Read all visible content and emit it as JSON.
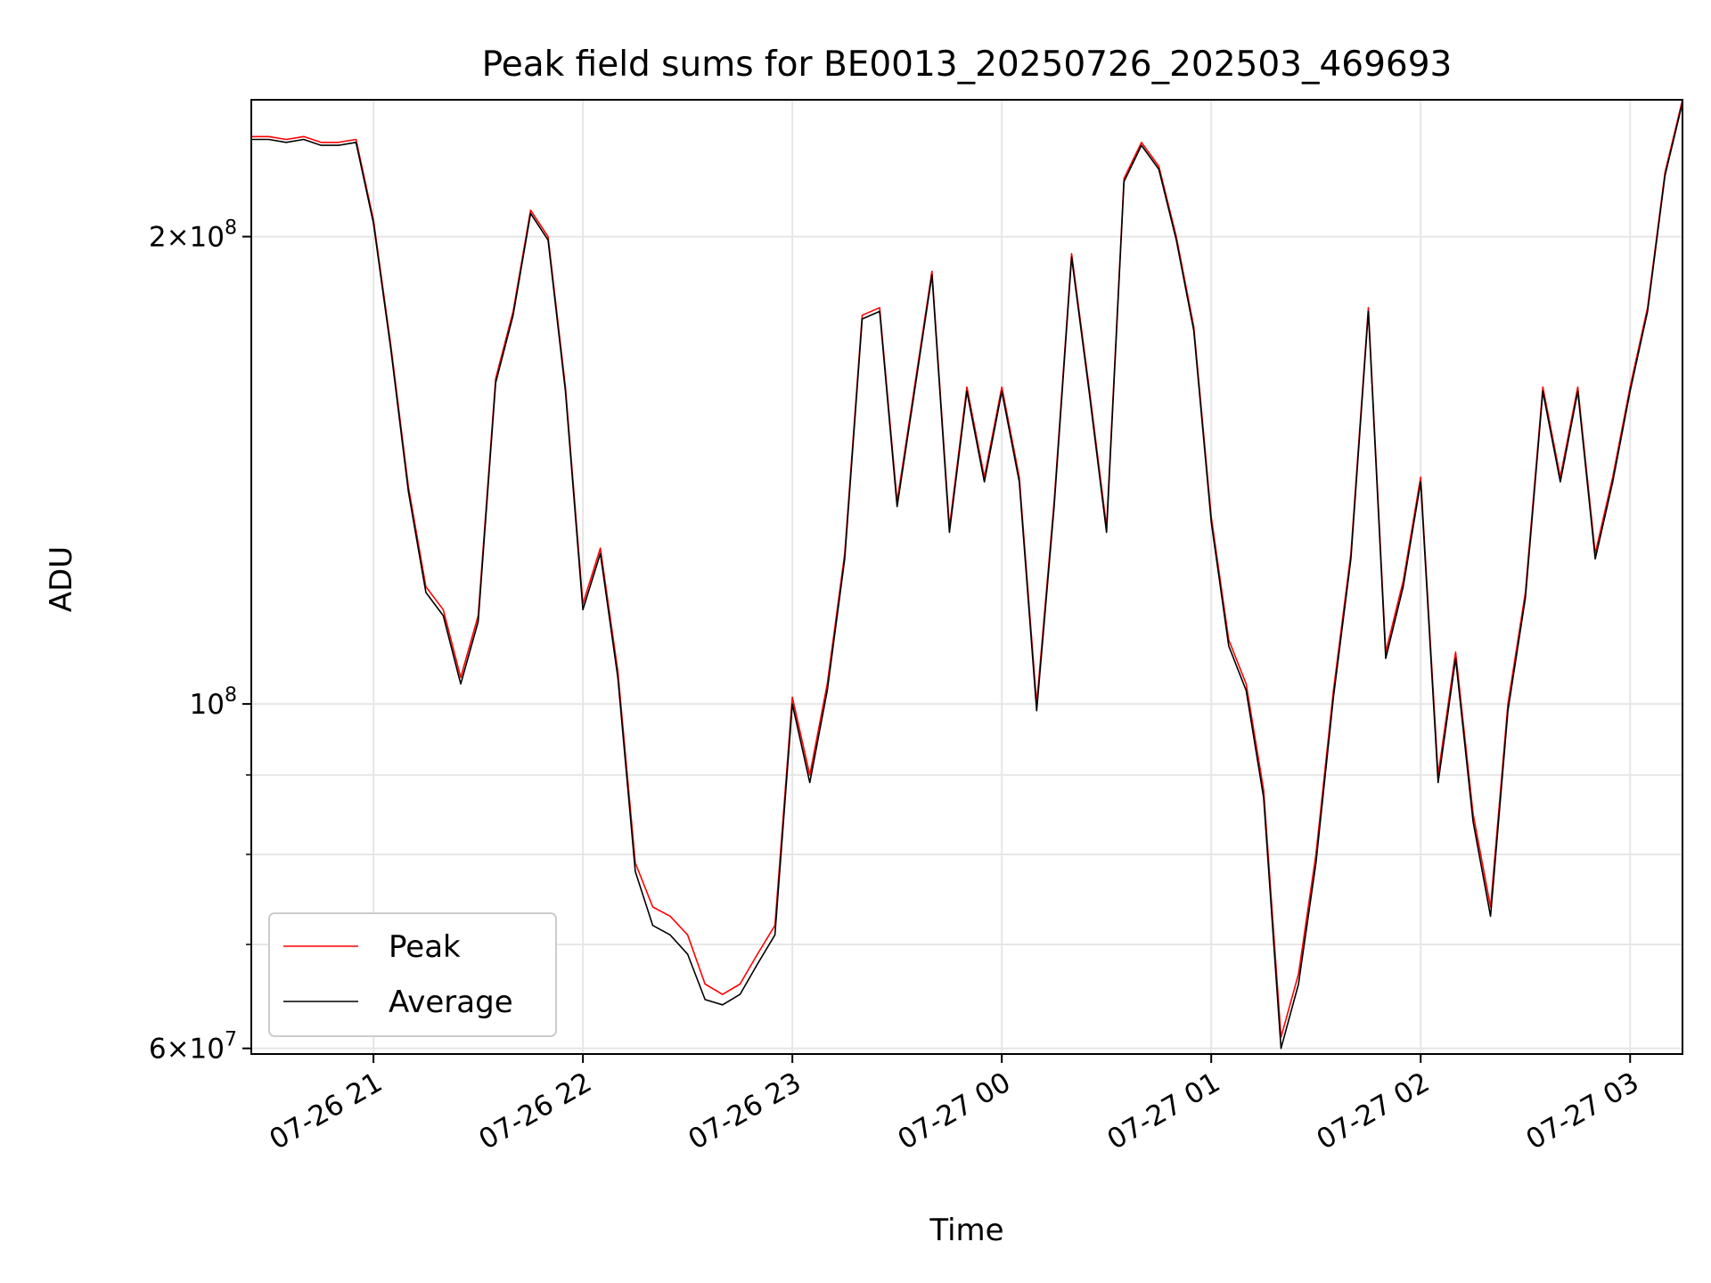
{
  "chart_data": {
    "type": "line",
    "title": "Peak field sums for BE0013_20250726_202503_469693",
    "xlabel": "Time",
    "ylabel": "ADU",
    "yscale": "log",
    "xlim": [
      "2025-07-26 20:25",
      "2025-07-27 03:15"
    ],
    "ylim": [
      59500000,
      245000000
    ],
    "x_ticks": [
      "07-26 21",
      "07-26 22",
      "07-26 23",
      "07-27 00",
      "07-27 01",
      "07-27 02",
      "07-27 03"
    ],
    "y_ticks": [
      {
        "value": 60000000,
        "mantissa": "6",
        "exp": "7"
      },
      {
        "value": 100000000,
        "mantissa": "",
        "exp": "8"
      },
      {
        "value": 200000000,
        "mantissa": "2",
        "exp": "8"
      }
    ],
    "y_minor_ticks": [
      70000000,
      80000000,
      90000000
    ],
    "grid": true,
    "legend": {
      "placement": "lower-left",
      "entries": [
        "Peak",
        "Average"
      ]
    },
    "colors": {
      "Peak": "#ff0000",
      "Average": "#000000"
    },
    "x": [
      "2025-07-26 20:25",
      "2025-07-26 20:30",
      "2025-07-26 20:35",
      "2025-07-26 20:40",
      "2025-07-26 20:45",
      "2025-07-26 20:50",
      "2025-07-26 20:55",
      "2025-07-26 21:00",
      "2025-07-26 21:05",
      "2025-07-26 21:10",
      "2025-07-26 21:15",
      "2025-07-26 21:20",
      "2025-07-26 21:25",
      "2025-07-26 21:30",
      "2025-07-26 21:35",
      "2025-07-26 21:40",
      "2025-07-26 21:45",
      "2025-07-26 21:50",
      "2025-07-26 21:55",
      "2025-07-26 22:00",
      "2025-07-26 22:05",
      "2025-07-26 22:10",
      "2025-07-26 22:15",
      "2025-07-26 22:20",
      "2025-07-26 22:25",
      "2025-07-26 22:30",
      "2025-07-26 22:35",
      "2025-07-26 22:40",
      "2025-07-26 22:45",
      "2025-07-26 22:50",
      "2025-07-26 22:55",
      "2025-07-26 23:00",
      "2025-07-26 23:05",
      "2025-07-26 23:10",
      "2025-07-26 23:15",
      "2025-07-26 23:20",
      "2025-07-26 23:25",
      "2025-07-26 23:30",
      "2025-07-26 23:35",
      "2025-07-26 23:40",
      "2025-07-26 23:45",
      "2025-07-26 23:50",
      "2025-07-26 23:55",
      "2025-07-27 00:00",
      "2025-07-27 00:05",
      "2025-07-27 00:10",
      "2025-07-27 00:15",
      "2025-07-27 00:20",
      "2025-07-27 00:25",
      "2025-07-27 00:30",
      "2025-07-27 00:35",
      "2025-07-27 00:40",
      "2025-07-27 00:45",
      "2025-07-27 00:50",
      "2025-07-27 00:55",
      "2025-07-27 01:00",
      "2025-07-27 01:05",
      "2025-07-27 01:10",
      "2025-07-27 01:15",
      "2025-07-27 01:20",
      "2025-07-27 01:25",
      "2025-07-27 01:30",
      "2025-07-27 01:35",
      "2025-07-27 01:40",
      "2025-07-27 01:45",
      "2025-07-27 01:50",
      "2025-07-27 01:55",
      "2025-07-27 02:00",
      "2025-07-27 02:05",
      "2025-07-27 02:10",
      "2025-07-27 02:15",
      "2025-07-27 02:20",
      "2025-07-27 02:25",
      "2025-07-27 02:30",
      "2025-07-27 02:35",
      "2025-07-27 02:40",
      "2025-07-27 02:45",
      "2025-07-27 02:50",
      "2025-07-27 02:55",
      "2025-07-27 03:00",
      "2025-07-27 03:05",
      "2025-07-27 03:10",
      "2025-07-27 03:15"
    ],
    "series": [
      {
        "name": "Peak",
        "values": [
          232000000,
          232000000,
          231000000,
          232000000,
          230000000,
          230000000,
          231000000,
          205000000,
          170000000,
          138000000,
          119000000,
          115000000,
          104000000,
          114000000,
          162000000,
          179000000,
          208000000,
          200000000,
          160000000,
          116000000,
          126000000,
          105000000,
          79000000,
          74000000,
          73000000,
          71000000,
          66000000,
          65000000,
          66000000,
          69000000,
          72000000,
          101000000,
          90000000,
          103000000,
          125000000,
          178000000,
          180000000,
          135000000,
          160000000,
          190000000,
          130000000,
          160000000,
          140000000,
          160000000,
          140000000,
          100000000,
          135000000,
          195000000,
          160000000,
          130000000,
          218000000,
          230000000,
          222000000,
          200000000,
          175000000,
          132000000,
          110000000,
          103000000,
          88000000,
          61000000,
          67000000,
          80000000,
          102000000,
          125000000,
          180000000,
          108000000,
          120000000,
          140000000,
          90000000,
          108000000,
          85000000,
          74000000,
          100000000,
          118000000,
          160000000,
          140000000,
          160000000,
          125000000,
          140000000,
          160000000,
          180000000,
          220000000,
          245000000
        ]
      },
      {
        "name": "Average",
        "values": [
          231000000,
          231000000,
          230000000,
          231000000,
          229000000,
          229000000,
          230000000,
          204000000,
          169000000,
          137000000,
          118000000,
          114000000,
          103000000,
          113000000,
          161000000,
          178000000,
          207000000,
          199000000,
          159000000,
          115000000,
          125000000,
          104000000,
          78000000,
          72000000,
          71000000,
          69000000,
          64500000,
          64000000,
          65000000,
          68000000,
          71000000,
          100000000,
          89000000,
          102000000,
          124000000,
          177000000,
          179000000,
          134000000,
          159000000,
          189000000,
          129000000,
          159000000,
          139000000,
          159000000,
          139000000,
          99000000,
          134000000,
          194000000,
          159000000,
          129000000,
          217000000,
          229000000,
          221000000,
          199000000,
          174000000,
          131000000,
          109000000,
          102000000,
          87000000,
          60000000,
          66000000,
          79000000,
          101000000,
          124000000,
          179000000,
          107000000,
          119000000,
          139000000,
          89000000,
          107000000,
          84000000,
          73000000,
          99000000,
          117000000,
          159000000,
          139000000,
          159000000,
          124000000,
          139000000,
          159000000,
          179000000,
          219000000,
          244000000
        ]
      }
    ]
  }
}
